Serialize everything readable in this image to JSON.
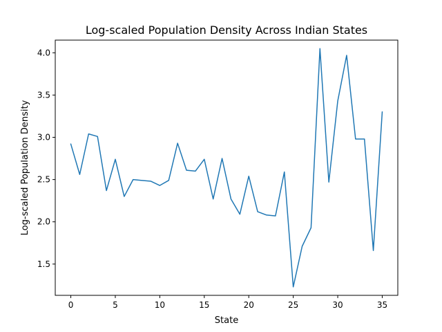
{
  "chart_data": {
    "type": "line",
    "title": "Log-scaled Population Density Across Indian States",
    "xlabel": "State",
    "ylabel": "Log-scaled Population Density",
    "x": [
      0,
      1,
      2,
      3,
      4,
      5,
      6,
      7,
      8,
      9,
      10,
      11,
      12,
      13,
      14,
      15,
      16,
      17,
      18,
      19,
      20,
      21,
      22,
      23,
      24,
      25,
      26,
      27,
      28,
      29,
      30,
      31,
      32,
      33,
      34,
      35
    ],
    "series": [
      {
        "name": "Log-scaled Population Density",
        "color": "#1f77b4",
        "values": [
          2.92,
          2.56,
          3.04,
          3.01,
          2.37,
          2.74,
          2.3,
          2.5,
          2.49,
          2.48,
          2.43,
          2.49,
          2.93,
          2.61,
          2.6,
          2.74,
          2.27,
          2.75,
          2.27,
          2.09,
          2.54,
          2.12,
          2.08,
          2.07,
          2.59,
          1.23,
          1.71,
          1.93,
          4.05,
          2.47,
          3.43,
          3.97,
          2.98,
          2.98,
          1.66,
          3.3
        ]
      }
    ],
    "xlim": [
      -1.75,
      36.75
    ],
    "ylim": [
      1.13,
      4.15
    ],
    "xticks": [
      0,
      5,
      10,
      15,
      20,
      25,
      30,
      35
    ],
    "xtick_labels": [
      "0",
      "5",
      "10",
      "15",
      "20",
      "25",
      "30",
      "35"
    ],
    "yticks": [
      1.5,
      2.0,
      2.5,
      3.0,
      3.5,
      4.0
    ],
    "ytick_labels": [
      "1.5",
      "2.0",
      "2.5",
      "3.0",
      "3.5",
      "4.0"
    ],
    "grid": false,
    "legend": false
  }
}
